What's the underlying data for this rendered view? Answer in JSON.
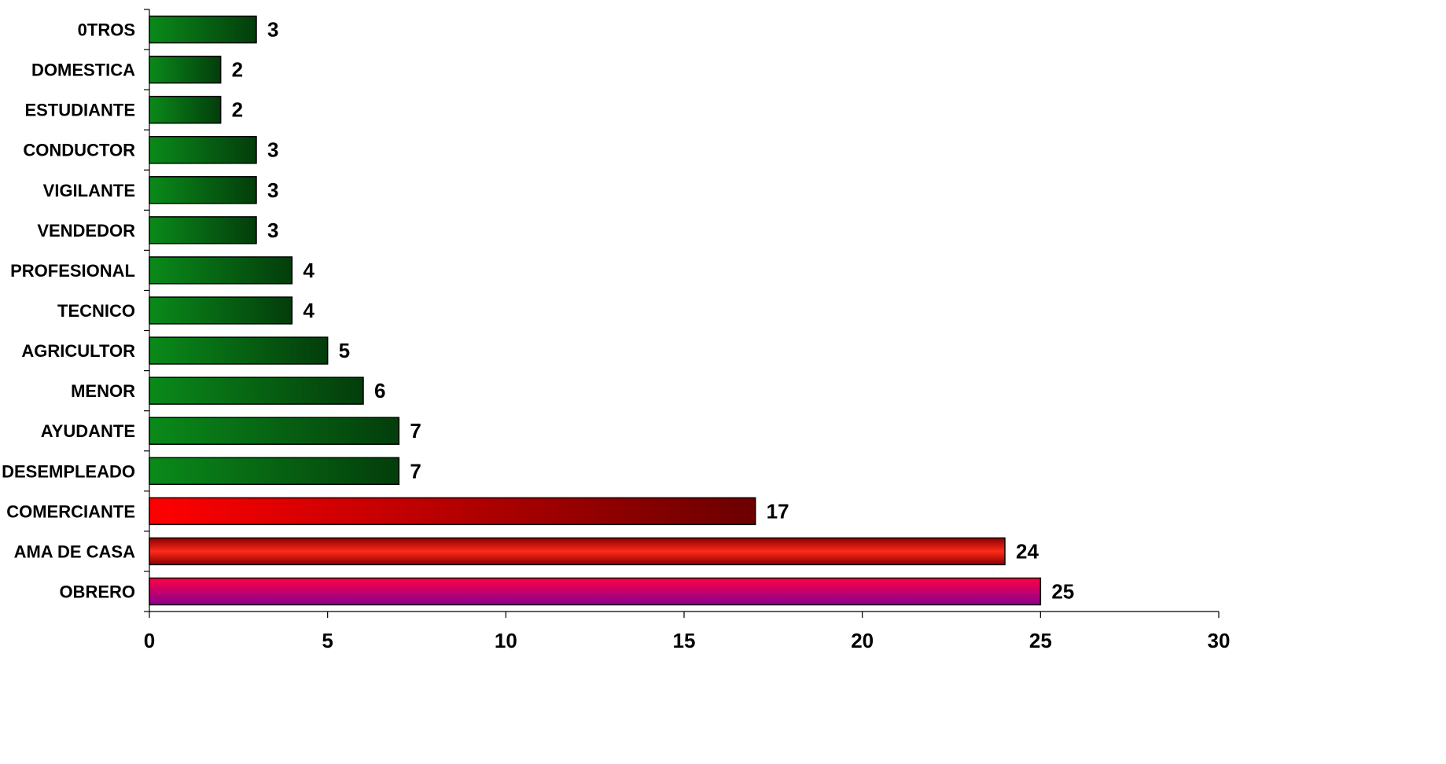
{
  "chart_data": {
    "type": "bar",
    "orientation": "horizontal",
    "categories": [
      "0TROS",
      "DOMESTICA",
      "ESTUDIANTE",
      "CONDUCTOR",
      "VIGILANTE",
      "VENDEDOR",
      "PROFESIONAL",
      "TECNICO",
      "AGRICULTOR",
      "MENOR",
      "AYUDANTE",
      "DESEMPLEADO",
      "COMERCIANTE",
      "AMA DE CASA",
      "OBRERO"
    ],
    "values": [
      3,
      2,
      2,
      3,
      3,
      3,
      4,
      4,
      5,
      6,
      7,
      7,
      17,
      24,
      25
    ],
    "data_labels": [
      "3",
      "2",
      "2",
      "3",
      "3",
      "3",
      "4",
      "4",
      "5",
      "6",
      "7",
      "7",
      "17",
      "24",
      "25"
    ],
    "bar_styles": [
      "green",
      "green",
      "green",
      "green",
      "green",
      "green",
      "green",
      "green",
      "green",
      "green",
      "green",
      "green",
      "red-horizontal",
      "red-vertical",
      "pink-purple"
    ],
    "xlim": [
      0,
      30
    ],
    "x_ticks": [
      0,
      5,
      10,
      15,
      20,
      25,
      30
    ],
    "x_tick_labels": [
      "0",
      "5",
      "10",
      "15",
      "20",
      "25",
      "30"
    ],
    "title": "",
    "xlabel": "",
    "ylabel": "",
    "grid": false,
    "legend": "none",
    "colors": {
      "green_start": "#0a8a1a",
      "green_end": "#033d0b",
      "red_start": "#ff0000",
      "red_end": "#6b0000",
      "amadecasa_edge": "#8a0000",
      "amadecasa_mid": "#ff2a1a",
      "obrero_top": "#ff0044",
      "obrero_bottom": "#8a0090"
    }
  }
}
